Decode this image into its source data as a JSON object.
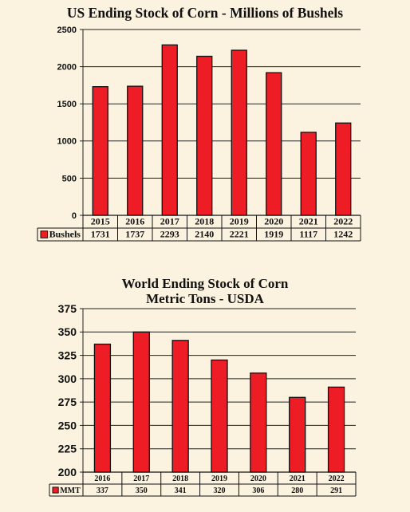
{
  "chart_data": [
    {
      "type": "bar",
      "title": "US Ending Stock of Corn - Millions of Bushels",
      "categories": [
        "2015",
        "2016",
        "2017",
        "2018",
        "2019",
        "2020",
        "2021",
        "2022"
      ],
      "series": [
        {
          "name": "Bushels",
          "values": [
            1731,
            1737,
            2293,
            2140,
            2221,
            1919,
            1117,
            1242
          ]
        }
      ],
      "yticks": [
        "0",
        "500",
        "1000",
        "1500",
        "2000",
        "2500"
      ],
      "ylim": [
        0,
        2500
      ],
      "grid": true,
      "bar_color": "#ee1c25",
      "table_values": [
        "1731",
        "1737",
        "2293",
        "2140",
        "2221",
        "1919",
        "1117",
        "1242"
      ]
    },
    {
      "type": "bar",
      "title_line1": "World Ending Stock of Corn",
      "title_line2": "Metric Tons - USDA",
      "categories": [
        "2016",
        "2017",
        "2018",
        "2019",
        "2020",
        "2021",
        "2022"
      ],
      "series": [
        {
          "name": "MMT",
          "values": [
            337,
            350,
            341,
            320,
            306,
            280,
            291
          ]
        }
      ],
      "yticks": [
        "200",
        "225",
        "250",
        "275",
        "300",
        "325",
        "350",
        "375"
      ],
      "ylim": [
        200,
        375
      ],
      "grid": true,
      "bar_color": "#ee1c25",
      "table_values": [
        "337",
        "350",
        "341",
        "320",
        "306",
        "280",
        "291"
      ]
    }
  ]
}
